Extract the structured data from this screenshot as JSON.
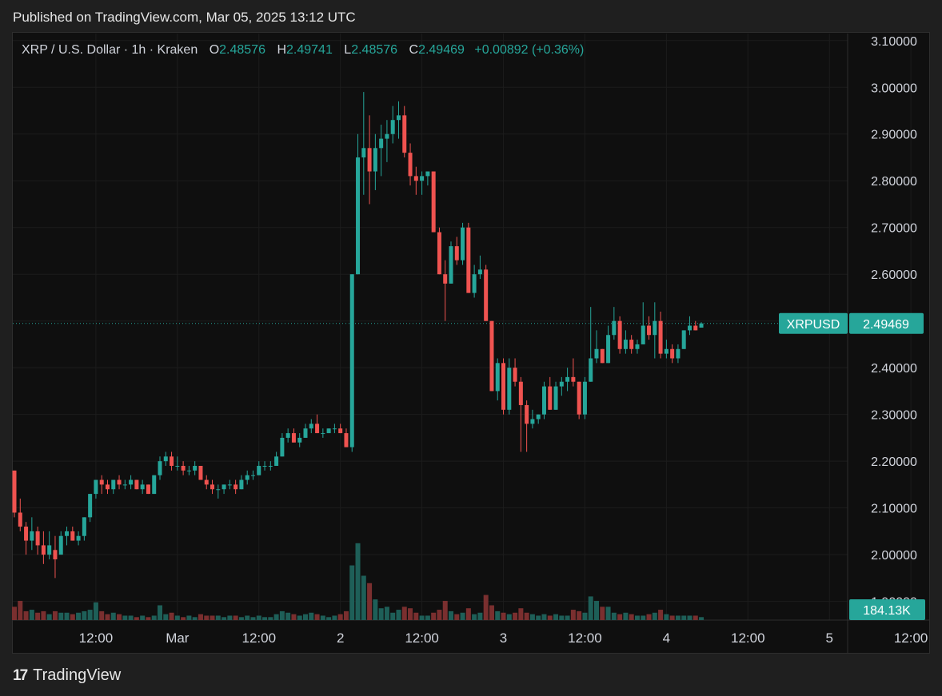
{
  "header": {
    "published": "Published on TradingView.com, Mar 05, 2025 13:12 UTC"
  },
  "legend": {
    "symbol": "XRP / U.S. Dollar · 1h · Kraken",
    "o_label": "O",
    "o_value": "2.48576",
    "h_label": "H",
    "h_value": "2.49741",
    "l_label": "L",
    "l_value": "2.48576",
    "c_label": "C",
    "c_value": "2.49469",
    "change": "+0.00892 (+0.36%)"
  },
  "footer": {
    "brand": "TradingView",
    "mark": "17"
  },
  "colors": {
    "up": "#26a69a",
    "down": "#ef5350",
    "up_vol": "#1e5f58",
    "down_vol": "#7a2f2f",
    "grid": "#1c1c1c",
    "axis_text": "#d1d4dc",
    "price_tag": "#26a69a"
  },
  "chart_data": {
    "type": "candlestick",
    "symbol_tag": "XRPUSD",
    "last_price": "2.49469",
    "volume_tag": "184.13K",
    "ylim": [
      1.86,
      3.115
    ],
    "y_ticks": [
      "3.10000",
      "3.00000",
      "2.90000",
      "2.80000",
      "2.70000",
      "2.60000",
      "2.50000",
      "2.40000",
      "2.30000",
      "2.20000",
      "2.10000",
      "2.00000",
      "1.90000"
    ],
    "x_ticks": [
      "12:00",
      "Mar",
      "12:00",
      "2",
      "12:00",
      "3",
      "12:00",
      "4",
      "12:00",
      "5",
      "12:00"
    ],
    "x_tick_bars": [
      14,
      28,
      42,
      56,
      70,
      84,
      98,
      112,
      126,
      140,
      154
    ],
    "volume_max": 1,
    "candles": [
      [
        2.18,
        2.18,
        2.08,
        2.09,
        0.09
      ],
      [
        2.09,
        2.12,
        2.05,
        2.06,
        0.13
      ],
      [
        2.06,
        2.07,
        2.0,
        2.03,
        0.06
      ],
      [
        2.03,
        2.08,
        2.01,
        2.05,
        0.07
      ],
      [
        2.05,
        2.06,
        2.0,
        2.02,
        0.05
      ],
      [
        2.02,
        2.05,
        1.98,
        2.0,
        0.06
      ],
      [
        2.0,
        2.05,
        1.99,
        2.02,
        0.04
      ],
      [
        2.01,
        2.04,
        1.95,
        1.99,
        0.06
      ],
      [
        2.0,
        2.05,
        2.0,
        2.04,
        0.05
      ],
      [
        2.04,
        2.06,
        2.02,
        2.05,
        0.05
      ],
      [
        2.05,
        2.06,
        2.03,
        2.03,
        0.04
      ],
      [
        2.03,
        2.05,
        2.02,
        2.04,
        0.05
      ],
      [
        2.04,
        2.08,
        2.03,
        2.08,
        0.06
      ],
      [
        2.08,
        2.13,
        2.07,
        2.13,
        0.07
      ],
      [
        2.13,
        2.16,
        2.12,
        2.16,
        0.12
      ],
      [
        2.16,
        2.17,
        2.13,
        2.15,
        0.06
      ],
      [
        2.15,
        2.16,
        2.13,
        2.14,
        0.04
      ],
      [
        2.14,
        2.16,
        2.13,
        2.16,
        0.05
      ],
      [
        2.16,
        2.17,
        2.14,
        2.15,
        0.04
      ],
      [
        2.15,
        2.16,
        2.14,
        2.15,
        0.03
      ],
      [
        2.15,
        2.17,
        2.14,
        2.16,
        0.03
      ],
      [
        2.16,
        2.16,
        2.14,
        2.14,
        0.02
      ],
      [
        2.14,
        2.16,
        2.13,
        2.15,
        0.03
      ],
      [
        2.15,
        2.15,
        2.13,
        2.13,
        0.02
      ],
      [
        2.13,
        2.17,
        2.13,
        2.17,
        0.03
      ],
      [
        2.17,
        2.21,
        2.16,
        2.2,
        0.1
      ],
      [
        2.2,
        2.22,
        2.19,
        2.21,
        0.04
      ],
      [
        2.21,
        2.22,
        2.18,
        2.19,
        0.05
      ],
      [
        2.19,
        2.21,
        2.18,
        2.19,
        0.03
      ],
      [
        2.19,
        2.2,
        2.17,
        2.18,
        0.02
      ],
      [
        2.18,
        2.19,
        2.17,
        2.18,
        0.03
      ],
      [
        2.18,
        2.2,
        2.17,
        2.19,
        0.02
      ],
      [
        2.19,
        2.19,
        2.16,
        2.16,
        0.04
      ],
      [
        2.16,
        2.17,
        2.14,
        2.15,
        0.03
      ],
      [
        2.15,
        2.16,
        2.13,
        2.14,
        0.03
      ],
      [
        2.14,
        2.15,
        2.12,
        2.14,
        0.03
      ],
      [
        2.14,
        2.15,
        2.13,
        2.15,
        0.02
      ],
      [
        2.15,
        2.16,
        2.14,
        2.15,
        0.03
      ],
      [
        2.15,
        2.16,
        2.13,
        2.14,
        0.03
      ],
      [
        2.14,
        2.17,
        2.14,
        2.16,
        0.02
      ],
      [
        2.16,
        2.18,
        2.15,
        2.17,
        0.03
      ],
      [
        2.17,
        2.18,
        2.16,
        2.17,
        0.02
      ],
      [
        2.17,
        2.2,
        2.17,
        2.19,
        0.03
      ],
      [
        2.19,
        2.2,
        2.18,
        2.19,
        0.02
      ],
      [
        2.19,
        2.2,
        2.18,
        2.19,
        0.02
      ],
      [
        2.19,
        2.22,
        2.19,
        2.21,
        0.04
      ],
      [
        2.21,
        2.26,
        2.21,
        2.25,
        0.06
      ],
      [
        2.25,
        2.27,
        2.24,
        2.26,
        0.05
      ],
      [
        2.26,
        2.27,
        2.24,
        2.24,
        0.04
      ],
      [
        2.24,
        2.26,
        2.23,
        2.25,
        0.03
      ],
      [
        2.25,
        2.28,
        2.25,
        2.27,
        0.04
      ],
      [
        2.27,
        2.29,
        2.26,
        2.28,
        0.05
      ],
      [
        2.28,
        2.3,
        2.26,
        2.26,
        0.04
      ],
      [
        2.26,
        2.27,
        2.25,
        2.26,
        0.03
      ],
      [
        2.26,
        2.27,
        2.26,
        2.27,
        0.02
      ],
      [
        2.27,
        2.28,
        2.26,
        2.27,
        0.03
      ],
      [
        2.27,
        2.28,
        2.26,
        2.26,
        0.04
      ],
      [
        2.26,
        2.27,
        2.23,
        2.23,
        0.06
      ],
      [
        2.23,
        2.6,
        2.22,
        2.6,
        0.37
      ],
      [
        2.6,
        2.9,
        2.6,
        2.85,
        0.52
      ],
      [
        2.85,
        2.99,
        2.77,
        2.87,
        0.3
      ],
      [
        2.87,
        2.94,
        2.75,
        2.82,
        0.25
      ],
      [
        2.82,
        2.9,
        2.78,
        2.87,
        0.14
      ],
      [
        2.87,
        2.92,
        2.81,
        2.89,
        0.08
      ],
      [
        2.89,
        2.93,
        2.84,
        2.9,
        0.09
      ],
      [
        2.9,
        2.96,
        2.88,
        2.93,
        0.05
      ],
      [
        2.93,
        2.97,
        2.89,
        2.94,
        0.07
      ],
      [
        2.94,
        2.96,
        2.85,
        2.86,
        0.09
      ],
      [
        2.86,
        2.88,
        2.79,
        2.81,
        0.08
      ],
      [
        2.81,
        2.83,
        2.77,
        2.8,
        0.05
      ],
      [
        2.8,
        2.82,
        2.77,
        2.81,
        0.03
      ],
      [
        2.81,
        2.82,
        2.79,
        2.82,
        0.03
      ],
      [
        2.82,
        2.82,
        2.69,
        2.69,
        0.05
      ],
      [
        2.69,
        2.7,
        2.6,
        2.6,
        0.07
      ],
      [
        2.6,
        2.63,
        2.5,
        2.58,
        0.13
      ],
      [
        2.58,
        2.67,
        2.58,
        2.66,
        0.06
      ],
      [
        2.66,
        2.68,
        2.62,
        2.63,
        0.04
      ],
      [
        2.63,
        2.71,
        2.62,
        2.7,
        0.05
      ],
      [
        2.7,
        2.71,
        2.56,
        2.56,
        0.08
      ],
      [
        2.56,
        2.62,
        2.55,
        2.6,
        0.04
      ],
      [
        2.6,
        2.64,
        2.59,
        2.61,
        0.05
      ],
      [
        2.61,
        2.62,
        2.5,
        2.5,
        0.17
      ],
      [
        2.5,
        2.5,
        2.35,
        2.35,
        0.1
      ],
      [
        2.35,
        2.42,
        2.33,
        2.41,
        0.06
      ],
      [
        2.41,
        2.42,
        2.3,
        2.31,
        0.05
      ],
      [
        2.31,
        2.42,
        2.3,
        2.4,
        0.04
      ],
      [
        2.4,
        2.42,
        2.36,
        2.37,
        0.05
      ],
      [
        2.37,
        2.38,
        2.22,
        2.32,
        0.08
      ],
      [
        2.32,
        2.33,
        2.22,
        2.28,
        0.05
      ],
      [
        2.28,
        2.31,
        2.27,
        2.29,
        0.04
      ],
      [
        2.29,
        2.3,
        2.28,
        2.3,
        0.03
      ],
      [
        2.3,
        2.37,
        2.29,
        2.36,
        0.04
      ],
      [
        2.36,
        2.38,
        2.31,
        2.31,
        0.03
      ],
      [
        2.31,
        2.37,
        2.31,
        2.36,
        0.04
      ],
      [
        2.36,
        2.38,
        2.34,
        2.37,
        0.03
      ],
      [
        2.37,
        2.4,
        2.35,
        2.38,
        0.03
      ],
      [
        2.38,
        2.42,
        2.36,
        2.37,
        0.07
      ],
      [
        2.37,
        2.37,
        2.29,
        2.3,
        0.06
      ],
      [
        2.3,
        2.38,
        2.29,
        2.37,
        0.05
      ],
      [
        2.37,
        2.53,
        2.37,
        2.42,
        0.16
      ],
      [
        2.42,
        2.48,
        2.41,
        2.44,
        0.13
      ],
      [
        2.44,
        2.44,
        2.41,
        2.41,
        0.09
      ],
      [
        2.41,
        2.49,
        2.41,
        2.47,
        0.09
      ],
      [
        2.47,
        2.53,
        2.46,
        2.5,
        0.05
      ],
      [
        2.5,
        2.51,
        2.43,
        2.44,
        0.04
      ],
      [
        2.44,
        2.48,
        2.43,
        2.46,
        0.05
      ],
      [
        2.46,
        2.47,
        2.43,
        2.44,
        0.04
      ],
      [
        2.44,
        2.46,
        2.43,
        2.45,
        0.03
      ],
      [
        2.45,
        2.54,
        2.45,
        2.49,
        0.03
      ],
      [
        2.49,
        2.51,
        2.46,
        2.47,
        0.04
      ],
      [
        2.47,
        2.54,
        2.42,
        2.5,
        0.05
      ],
      [
        2.5,
        2.52,
        2.42,
        2.43,
        0.07
      ],
      [
        2.43,
        2.46,
        2.42,
        2.44,
        0.04
      ],
      [
        2.44,
        2.45,
        2.41,
        2.42,
        0.03
      ],
      [
        2.42,
        2.45,
        2.41,
        2.44,
        0.03
      ],
      [
        2.44,
        2.48,
        2.44,
        2.48,
        0.03
      ],
      [
        2.48,
        2.51,
        2.47,
        2.49,
        0.03
      ],
      [
        2.49,
        2.5,
        2.48,
        2.48,
        0.03
      ],
      [
        2.48576,
        2.49741,
        2.48576,
        2.49469,
        0.02
      ]
    ]
  }
}
